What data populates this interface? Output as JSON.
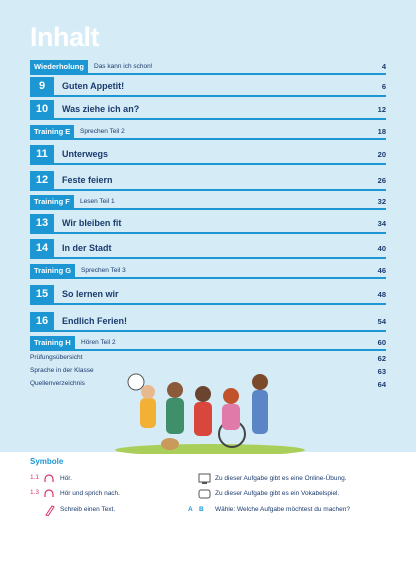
{
  "header": {
    "title": "Inhalt"
  },
  "toc": [
    {
      "label": "Wiederholung",
      "subtitle": "Das kann ich schon!",
      "page": "4"
    },
    {
      "number": "9",
      "title": "Guten Appetit!",
      "page": "6"
    },
    {
      "number": "10",
      "title": "Was ziehe ich an?",
      "page": "12"
    },
    {
      "label": "Training E",
      "subtitle": "Sprechen Teil 2",
      "page": "18"
    },
    {
      "number": "11",
      "title": "Unterwegs",
      "page": "20"
    },
    {
      "number": "12",
      "title": "Feste feiern",
      "page": "26"
    },
    {
      "label": "Training F",
      "subtitle": "Lesen Teil 1",
      "page": "32"
    },
    {
      "number": "13",
      "title": "Wir bleiben fit",
      "page": "34"
    },
    {
      "number": "14",
      "title": "In der Stadt",
      "page": "40"
    },
    {
      "label": "Training G",
      "subtitle": "Sprechen Teil 3",
      "page": "46"
    },
    {
      "number": "15",
      "title": "So lernen wir",
      "page": "48"
    },
    {
      "number": "16",
      "title": "Endlich Ferien!",
      "page": "54"
    },
    {
      "label": "Training H",
      "subtitle": "Hören Teil 2",
      "page": "60"
    },
    {
      "text": "Prüfungsübersicht",
      "page": "62"
    },
    {
      "text": "Sprache in der Klasse",
      "page": "63"
    },
    {
      "text": "Quellenverzeichnis",
      "page": "64"
    }
  ],
  "symbols": {
    "title": "Symbole",
    "left": [
      {
        "code": "1.1",
        "text": "Hör."
      },
      {
        "code": "1.3",
        "text": "Hör und sprich nach."
      },
      {
        "text": "Schreib einen Text."
      }
    ],
    "right": [
      {
        "text": "Zu dieser Aufgabe gibt es eine Online-Übung."
      },
      {
        "text": "Zu dieser Aufgabe gibt es ein Vokabelspiel."
      },
      {
        "codes": [
          "A",
          "B"
        ],
        "text": "Wähle: Welche Aufgabe möchtest du machen?"
      }
    ]
  }
}
